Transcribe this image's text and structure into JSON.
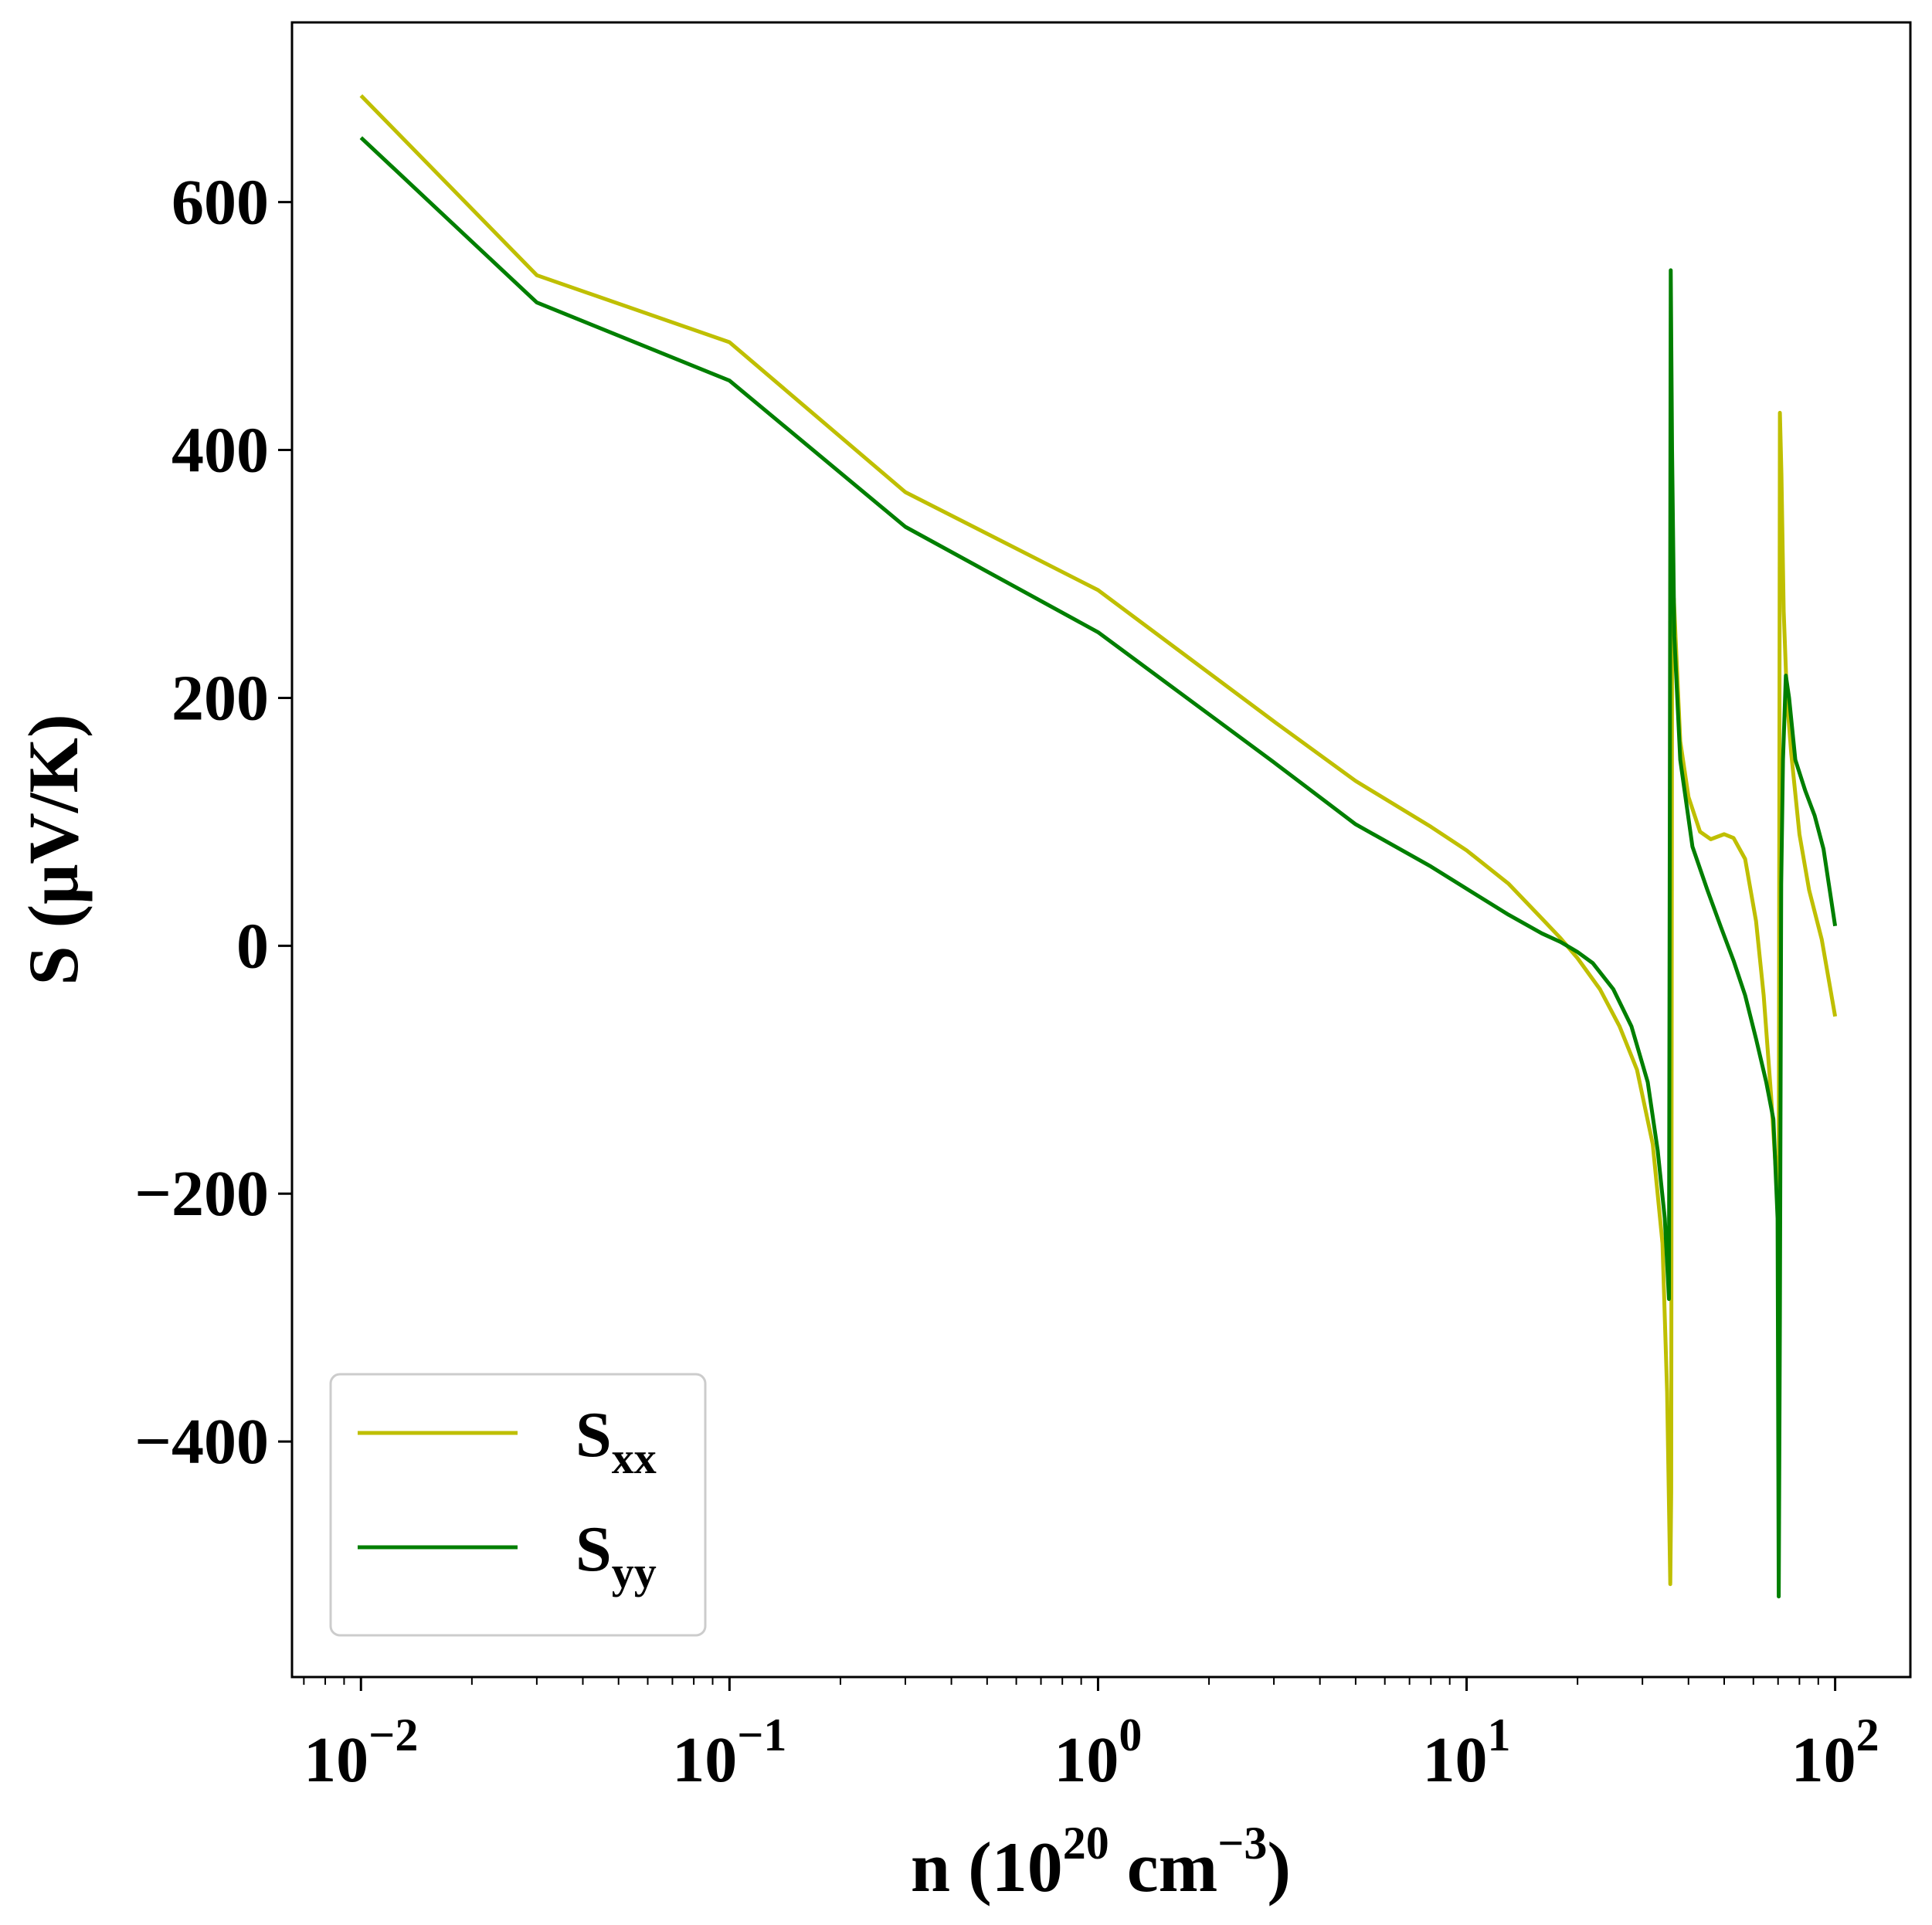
{
  "chart_data": {
    "type": "line",
    "xscale": "log",
    "xlim": [
      0.0065,
      160
    ],
    "ylim": [
      -590,
      745
    ],
    "grid": false,
    "legend_position": "lower-left",
    "xlabel": {
      "prefix": "n (10",
      "sup1": "20",
      "middle": " cm",
      "sup2": "−3",
      "suffix": ")"
    },
    "ylabel": "S (μV/K)",
    "x_ticks": [
      {
        "value": 0.01,
        "base": "10",
        "exp": "−2"
      },
      {
        "value": 0.1,
        "base": "10",
        "exp": "−1"
      },
      {
        "value": 1,
        "base": "10",
        "exp": "0"
      },
      {
        "value": 10,
        "base": "10",
        "exp": "1"
      },
      {
        "value": 100,
        "base": "10",
        "exp": "2"
      }
    ],
    "y_ticks": [
      {
        "value": 600,
        "label": "600"
      },
      {
        "value": 400,
        "label": "400"
      },
      {
        "value": 200,
        "label": "200"
      },
      {
        "value": 0,
        "label": "0"
      },
      {
        "value": -200,
        "label": "−200"
      },
      {
        "value": -400,
        "label": "−400"
      }
    ],
    "series": [
      {
        "name": "S_xx",
        "legend_main": "S",
        "legend_sub": "xx",
        "color": "#bfbf00",
        "points": [
          [
            0.01,
            686
          ],
          [
            0.03,
            541
          ],
          [
            0.1,
            487
          ],
          [
            0.3,
            366
          ],
          [
            1,
            287
          ],
          [
            3,
            181
          ],
          [
            5,
            133
          ],
          [
            8,
            96
          ],
          [
            10,
            77
          ],
          [
            13,
            50
          ],
          [
            16,
            22
          ],
          [
            18,
            6
          ],
          [
            20,
            -10
          ],
          [
            23,
            -35
          ],
          [
            26,
            -65
          ],
          [
            29,
            -100
          ],
          [
            32,
            -160
          ],
          [
            34,
            -240
          ],
          [
            35,
            -360
          ],
          [
            35.7,
            -515
          ],
          [
            35.9,
            -440
          ],
          [
            36.1,
            260
          ],
          [
            36.5,
            280
          ],
          [
            38,
            165
          ],
          [
            40,
            120
          ],
          [
            43,
            92
          ],
          [
            46,
            86
          ],
          [
            50,
            90
          ],
          [
            53,
            87
          ],
          [
            57,
            70
          ],
          [
            61,
            20
          ],
          [
            64,
            -40
          ],
          [
            67,
            -120
          ],
          [
            69,
            -180
          ],
          [
            70.3,
            -210
          ],
          [
            70.8,
            430
          ],
          [
            71.5,
            380
          ],
          [
            72.5,
            270
          ],
          [
            74,
            200
          ],
          [
            76,
            155
          ],
          [
            80,
            90
          ],
          [
            85,
            45
          ],
          [
            92,
            5
          ],
          [
            100,
            -57
          ]
        ]
      },
      {
        "name": "S_yy",
        "legend_main": "S",
        "legend_sub": "yy",
        "color": "#007f00",
        "points": [
          [
            0.01,
            652
          ],
          [
            0.03,
            519
          ],
          [
            0.1,
            456
          ],
          [
            0.3,
            338
          ],
          [
            1,
            253
          ],
          [
            3,
            148
          ],
          [
            5,
            98
          ],
          [
            8,
            64
          ],
          [
            10,
            46
          ],
          [
            13,
            25
          ],
          [
            16,
            10
          ],
          [
            18,
            3
          ],
          [
            20,
            -5
          ],
          [
            22,
            -14
          ],
          [
            25,
            -35
          ],
          [
            28,
            -65
          ],
          [
            31,
            -110
          ],
          [
            33,
            -165
          ],
          [
            34.5,
            -220
          ],
          [
            35.4,
            -285
          ],
          [
            35.8,
            545
          ],
          [
            36.1,
            400
          ],
          [
            36.6,
            250
          ],
          [
            38,
            150
          ],
          [
            41,
            80
          ],
          [
            45,
            45
          ],
          [
            49,
            15
          ],
          [
            53,
            -12
          ],
          [
            57,
            -40
          ],
          [
            61,
            -75
          ],
          [
            65,
            -110
          ],
          [
            68,
            -140
          ],
          [
            69.8,
            -220
          ],
          [
            70.3,
            -525
          ],
          [
            70.8,
            -300
          ],
          [
            71.4,
            50
          ],
          [
            72.2,
            150
          ],
          [
            73.5,
            218
          ],
          [
            75,
            200
          ],
          [
            78,
            150
          ],
          [
            83,
            125
          ],
          [
            88,
            105
          ],
          [
            93,
            78
          ],
          [
            100,
            16
          ]
        ]
      }
    ]
  }
}
